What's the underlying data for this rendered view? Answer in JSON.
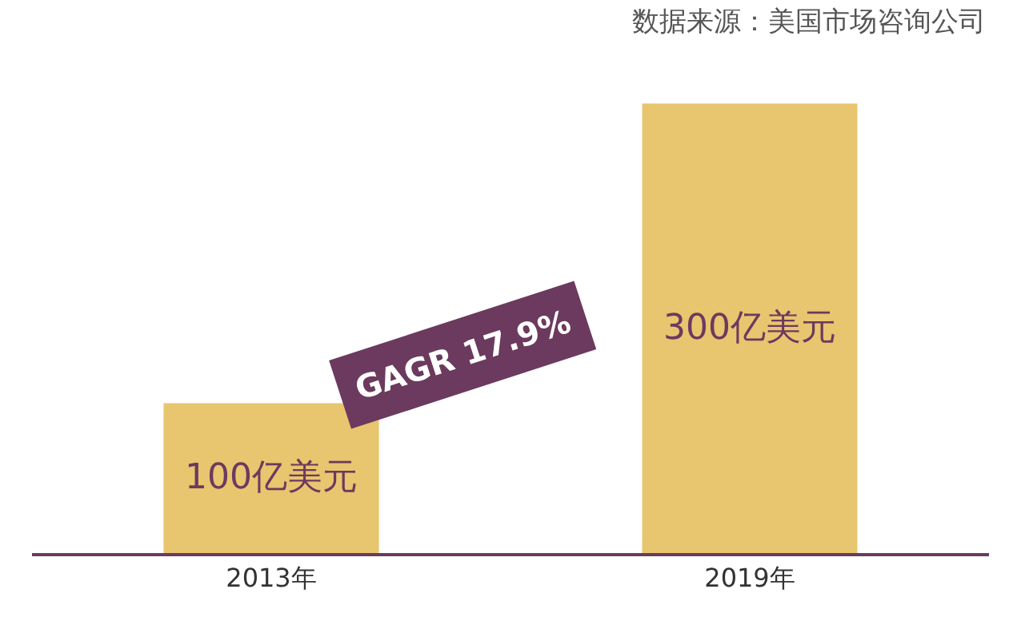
{
  "chart_data": {
    "type": "bar",
    "categories": [
      "2013年",
      "2019年"
    ],
    "values": [
      100,
      300
    ],
    "color": "#e8c56f",
    "value_labels": [
      "100亿美元",
      "300亿美元"
    ],
    "annotations": [
      "数据来源：美国市场咨询公司",
      "GAGR 17.9%"
    ],
    "grid": false,
    "legend": false
  }
}
